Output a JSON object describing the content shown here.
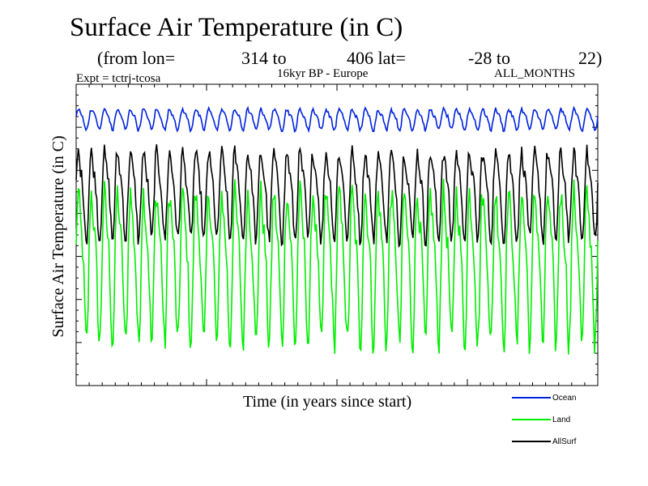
{
  "chart_data": {
    "type": "line",
    "title": "Surface Air Temperature (in C)",
    "subtitle": {
      "from_lon_label": "(from lon=",
      "lon_start": "314 to",
      "lon_end_lat_label": "406 lat=",
      "lat_start": "-28 to",
      "lat_end": "22)"
    },
    "experiment": "Expt = tctrj-tcosa",
    "region": "16kyr BP - Europe",
    "months": "ALL_MONTHS",
    "xlabel": "Time (in years since start)",
    "ylabel": "Surface Air Temperature (in C)",
    "x_range": [
      0,
      40
    ],
    "y_range": [
      0,
      35
    ],
    "n_cycles": 40,
    "grid": false,
    "legend_position": "bottom-right",
    "colors": {
      "Ocean": "#0022dd",
      "Land": "#00ee00",
      "AllSurf": "#000000"
    },
    "series": [
      {
        "name": "Ocean",
        "mean": 31.0,
        "amplitude": 1.3
      },
      {
        "name": "Land",
        "mean": 14.5,
        "amplitude": 9.5
      },
      {
        "name": "AllSurf",
        "mean": 22.5,
        "amplitude": 5.5
      }
    ]
  }
}
